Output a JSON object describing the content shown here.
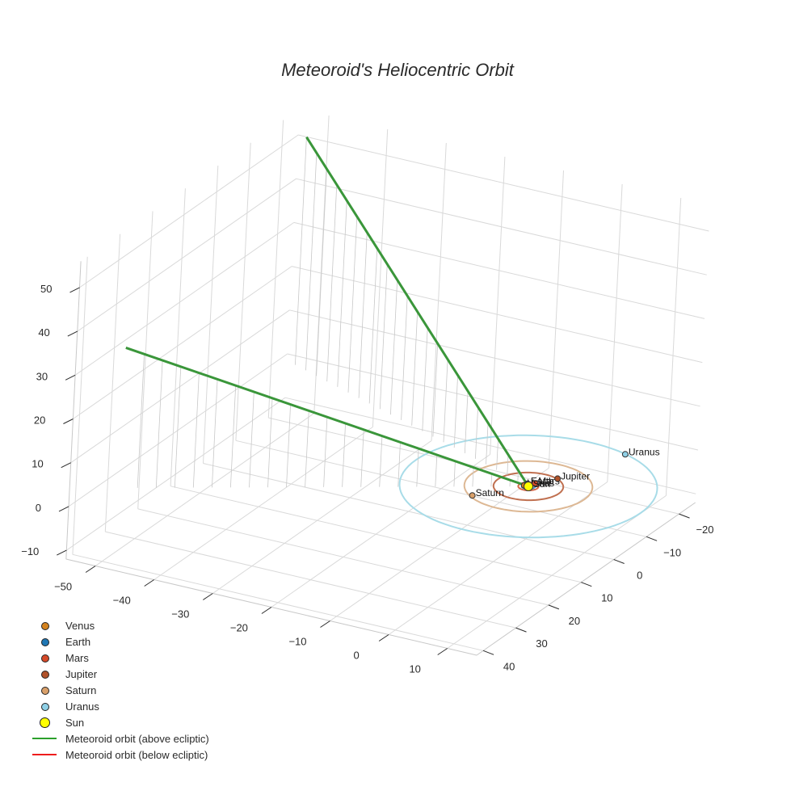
{
  "chart_data": {
    "type": "scatter3d",
    "title": "Meteoroid's Heliocentric Orbit",
    "axes": {
      "x": {
        "range": [
          -55,
          15
        ],
        "ticks": [
          -50,
          -40,
          -30,
          -20,
          -10,
          0,
          10
        ]
      },
      "y": {
        "range": [
          -25,
          42
        ],
        "ticks": [
          -20,
          -10,
          0,
          10,
          20,
          30,
          40
        ]
      },
      "z": {
        "range": [
          -12,
          56
        ],
        "ticks": [
          -10,
          0,
          10,
          20,
          30,
          40,
          50
        ]
      },
      "grid": true
    },
    "planets": [
      {
        "name": "Venus",
        "x": -0.72,
        "y": 0.0,
        "z": 0,
        "color": "#d4831f",
        "orbit_radius": 0.72,
        "orbit_color": "#e0a060"
      },
      {
        "name": "Earth",
        "x": -0.6,
        "y": -0.8,
        "z": 0,
        "color": "#1f77b4",
        "orbit_radius": 1.0,
        "orbit_color": "#4a90c8"
      },
      {
        "name": "Mars",
        "x": 0.3,
        "y": -1.5,
        "z": 0,
        "color": "#d64a2a",
        "orbit_radius": 1.52,
        "orbit_color": "#d66a4a"
      },
      {
        "name": "Jupiter",
        "x": 2.3,
        "y": -4.8,
        "z": 0,
        "color": "#b0522a",
        "orbit_radius": 5.2,
        "orbit_color": "#c07050"
      },
      {
        "name": "Saturn",
        "x": -5.5,
        "y": 7.3,
        "z": 0,
        "color": "#d9a06a",
        "orbit_radius": 9.54,
        "orbit_color": "#ddb894"
      },
      {
        "name": "Uranus",
        "x": 6.5,
        "y": -18,
        "z": 0,
        "color": "#8fd0e6",
        "orbit_radius": 19.2,
        "orbit_color": "#a8dce8"
      }
    ],
    "sun": {
      "name": "Sun",
      "x": 0,
      "y": 0,
      "z": 0,
      "color": "#ffff00"
    },
    "meteoroid_orbit": [
      {
        "name": "Meteoroid orbit (above ecliptic)",
        "color": "#3a963a",
        "x": [
          -52,
          0,
          -52
        ],
        "y": [
          -22,
          0,
          32
        ],
        "z": [
          52,
          0,
          32
        ]
      },
      {
        "name": "Meteoroid orbit (below ecliptic)",
        "color": "#ee1c1c",
        "x": [],
        "y": [],
        "z": []
      }
    ],
    "legend": {
      "position": "bottom-left",
      "entries": [
        {
          "label": "Venus",
          "kind": "marker",
          "color": "#d4831f"
        },
        {
          "label": "Earth",
          "kind": "marker",
          "color": "#1f77b4"
        },
        {
          "label": "Mars",
          "kind": "marker",
          "color": "#d64a2a"
        },
        {
          "label": "Jupiter",
          "kind": "marker",
          "color": "#b0522a"
        },
        {
          "label": "Saturn",
          "kind": "marker",
          "color": "#d9a06a"
        },
        {
          "label": "Uranus",
          "kind": "marker",
          "color": "#8fd0e6"
        },
        {
          "label": "Sun",
          "kind": "marker-large",
          "color": "#ffff00"
        },
        {
          "label": "Meteoroid orbit (above ecliptic)",
          "kind": "line",
          "color": "#2ca02c"
        },
        {
          "label": "Meteoroid orbit (below ecliptic)",
          "kind": "line",
          "color": "#ee1c1c"
        }
      ]
    }
  }
}
